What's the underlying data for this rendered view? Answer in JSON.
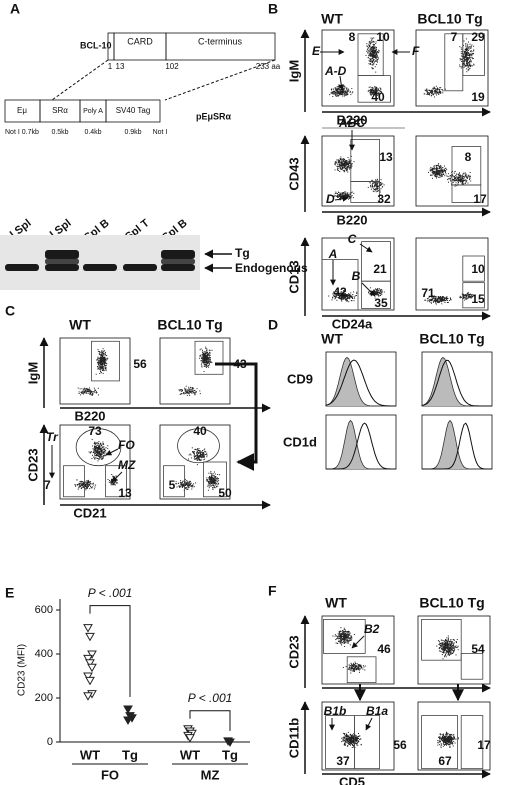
{
  "figure": {
    "A": {
      "label": "A",
      "gene": "BCL-10",
      "domains": [
        "CARD",
        "C-terminus"
      ],
      "positions": [
        "1",
        "13",
        "102",
        "233 aa"
      ],
      "vector": [
        "Eμ",
        "SRα",
        "Poly A",
        "SV40 Tag"
      ],
      "plasmid": "pEμSRα",
      "sizes": [
        "Not I 0.7kb",
        "0.5kb",
        "0.4kb",
        "0.9kb",
        "Not I"
      ],
      "lanes": [
        "WT - Total Spl",
        "Tg – Total Spl",
        "WT - Spl B",
        "Tg - Spl T",
        "Tg - Spl B"
      ],
      "bands": [
        "Tg",
        "Endogenous"
      ]
    },
    "B": {
      "label": "B",
      "groups": [
        "WT",
        "BCL10 Tg"
      ],
      "rows": [
        {
          "y": "IgM",
          "x": "B220",
          "wt_gates": [
            8,
            10,
            40
          ],
          "wt_labels": [
            "E",
            "F",
            "A-D"
          ],
          "tg_gates": [
            7,
            29,
            19
          ]
        },
        {
          "y": "CD43",
          "x": "B220",
          "wt_gates": [
            13,
            32
          ],
          "wt_labels": [
            "ABC",
            "D"
          ],
          "tg_gates": [
            8,
            17
          ]
        },
        {
          "y": "CD13",
          "x": "CD24a",
          "wt_gates": [
            21,
            42,
            35
          ],
          "wt_labels": [
            "C",
            "A",
            "B"
          ],
          "tg_gates": [
            10,
            71,
            15
          ]
        }
      ]
    },
    "C": {
      "label": "C",
      "groups": [
        "WT",
        "BCL10 Tg"
      ],
      "rows": [
        {
          "y": "IgM",
          "x": "B220",
          "wt_gates": [
            56
          ],
          "tg_gates": [
            43
          ]
        },
        {
          "y": "CD23",
          "x": "CD21",
          "wt_gates": [
            73,
            7,
            13
          ],
          "wt_labels": [
            "Tr",
            "FO",
            "MZ"
          ],
          "tg_gates": [
            40,
            5,
            50
          ]
        }
      ]
    },
    "D": {
      "label": "D",
      "groups": [
        "WT",
        "BCL10 Tg"
      ],
      "rows": [
        "CD9",
        "CD1d"
      ]
    },
    "F": {
      "label": "F",
      "groups": [
        "WT",
        "BCL10 Tg"
      ],
      "rows": [
        {
          "y": "CD23",
          "wt_gates": [
            46
          ],
          "wt_labels": [
            "B2"
          ],
          "tg_gates": [
            54
          ]
        },
        {
          "y": "CD11b",
          "x": "CD5",
          "wt_gates": [
            37,
            56
          ],
          "wt_labels": [
            "B1b",
            "B1a"
          ],
          "tg_gates": [
            67,
            17
          ]
        }
      ]
    },
    "E": {
      "label": "E"
    }
  },
  "chart_data": {
    "type": "scatter",
    "ylabel": "CD23 (MFI)",
    "categories": [
      "WT",
      "Tg",
      "WT",
      "Tg"
    ],
    "groups": [
      "FO",
      "MZ"
    ],
    "values": [
      [
        520,
        480,
        400,
        380,
        360,
        340,
        300,
        280,
        220,
        210
      ],
      [
        150,
        120,
        110,
        100
      ],
      [
        60,
        50,
        40,
        30,
        20
      ],
      [
        5,
        0
      ]
    ],
    "ylim": [
      0,
      650
    ],
    "yticks": [
      0,
      200,
      400,
      600
    ],
    "annotations": [
      "P < .001",
      "P < .001"
    ]
  }
}
